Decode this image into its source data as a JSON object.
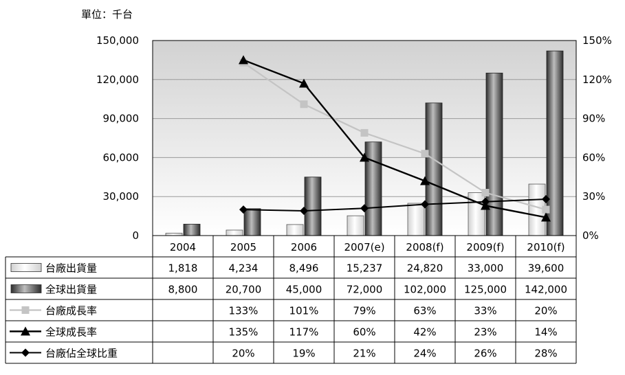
{
  "chart_data": {
    "type": "bar",
    "unit_label": "單位：千台",
    "categories": [
      "2004",
      "2005",
      "2006",
      "2007(e)",
      "2008(f)",
      "2009(f)",
      "2010(f)"
    ],
    "y_left_ticks": [
      "150,000",
      "120,000",
      "90,000",
      "60,000",
      "30,000",
      "0"
    ],
    "y_right_ticks": [
      "150%",
      "120%",
      "90%",
      "60%",
      "30%",
      "0%"
    ],
    "ylim_left": [
      0,
      150000
    ],
    "ylim_right": [
      0,
      150
    ],
    "bar_series": [
      {
        "name": "台廠出貨量",
        "style": "light-bar",
        "values": [
          1818,
          4234,
          8496,
          15237,
          24820,
          33000,
          39600
        ],
        "labels": [
          "1,818",
          "4,234",
          "8,496",
          "15,237",
          "24,820",
          "33,000",
          "39,600"
        ]
      },
      {
        "name": "全球出貨量",
        "style": "dark-bar",
        "values": [
          8800,
          20700,
          45000,
          72000,
          102000,
          125000,
          142000
        ],
        "labels": [
          "8,800",
          "20,700",
          "45,000",
          "72,000",
          "102,000",
          "125,000",
          "142,000"
        ]
      }
    ],
    "line_series": [
      {
        "name": "台廠成長率",
        "style": "gray-square",
        "values": [
          null,
          133,
          101,
          79,
          63,
          33,
          20
        ],
        "labels": [
          "",
          "133%",
          "101%",
          "79%",
          "63%",
          "33%",
          "20%"
        ]
      },
      {
        "name": "全球成長率",
        "style": "black-triangle",
        "values": [
          null,
          135,
          117,
          60,
          42,
          23,
          14
        ],
        "labels": [
          "",
          "135%",
          "117%",
          "60%",
          "42%",
          "23%",
          "14%"
        ]
      },
      {
        "name": "台廠佔全球比重",
        "style": "black-diamond",
        "values": [
          null,
          20,
          19,
          21,
          24,
          26,
          28
        ],
        "labels": [
          "",
          "20%",
          "19%",
          "21%",
          "24%",
          "26%",
          "28%"
        ]
      }
    ],
    "grid": true
  }
}
